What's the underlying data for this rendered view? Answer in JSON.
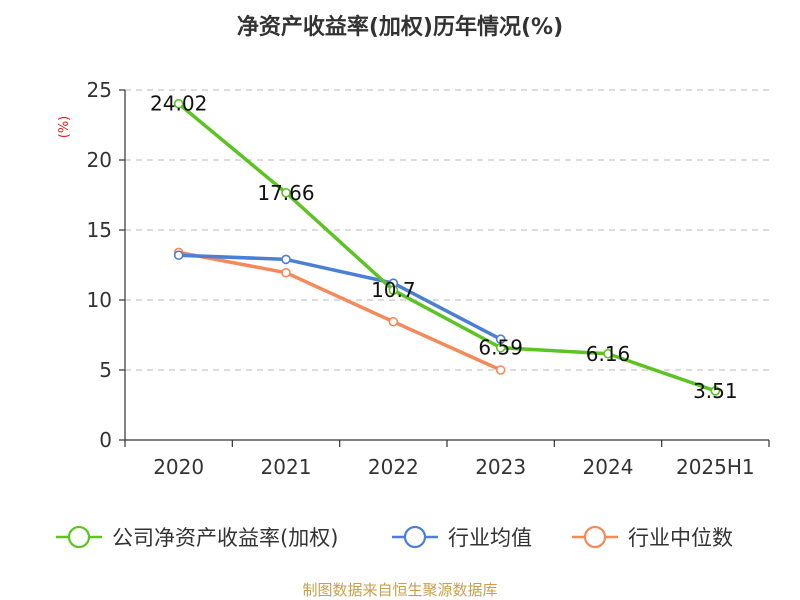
{
  "chart_data": {
    "type": "line",
    "title": "净资产收益率(加权)历年情况(%)",
    "ylabel": "(%)",
    "ylim": [
      0,
      25
    ],
    "yticks": [
      0,
      5,
      10,
      15,
      20,
      25
    ],
    "categories": [
      "2020",
      "2021",
      "2022",
      "2023",
      "2024",
      "2025H1"
    ],
    "grid": true,
    "legend_position": "bottom",
    "series": [
      {
        "name": "公司净资产收益率(加权)",
        "color": "#5cc322",
        "values": [
          24.02,
          17.66,
          10.7,
          6.59,
          6.16,
          3.51
        ],
        "labels": [
          "24.02",
          "17.66",
          "10.7",
          "6.59",
          "6.16",
          "3.51"
        ]
      },
      {
        "name": "行业均值",
        "color": "#4a7fd4",
        "values": [
          13.2,
          12.9,
          11.2,
          7.2,
          null,
          null
        ]
      },
      {
        "name": "行业中位数",
        "color": "#f5895a",
        "values": [
          13.4,
          11.95,
          8.45,
          5.0,
          null,
          null
        ]
      }
    ]
  },
  "source": {
    "text": "制图数据来自恒生聚源数据库",
    "color": "#c8a04a"
  },
  "ylabel_color": "#e02020"
}
